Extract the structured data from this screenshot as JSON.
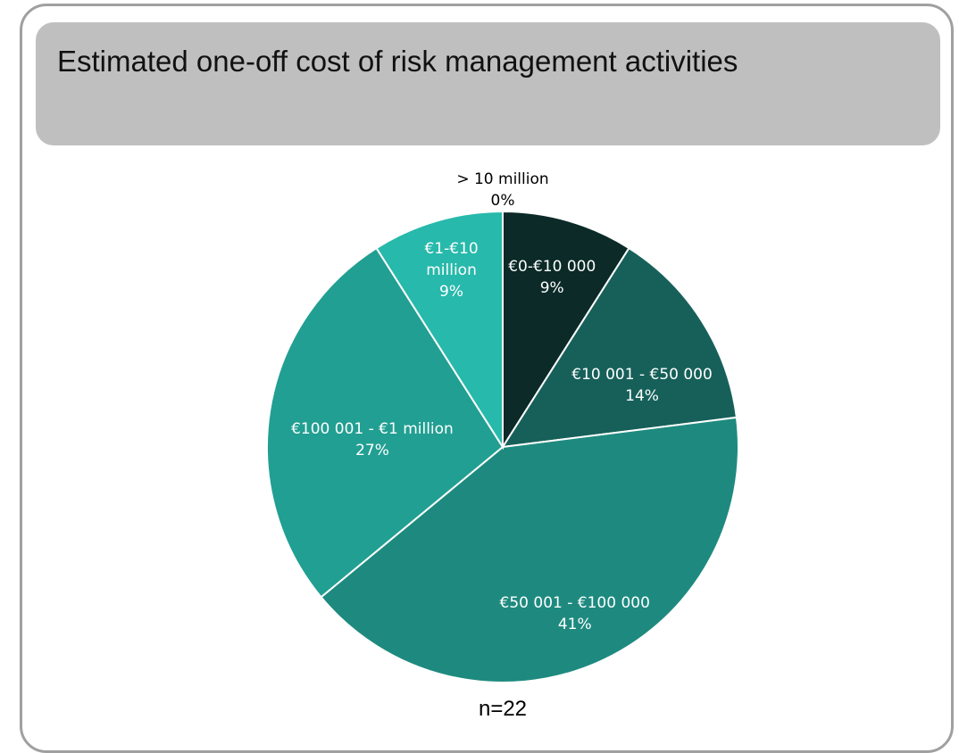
{
  "chart_data": {
    "type": "pie",
    "title": "Estimated one-off cost of risk management activities",
    "categories": [
      "€0-€10 000",
      "€10 001 - €50 000",
      "€50 001 - €100 000",
      "€100 001 - €1 million",
      "€1-€10 million",
      "> 10 million"
    ],
    "values": [
      9,
      14,
      41,
      27,
      9,
      0
    ],
    "value_labels": [
      "9%",
      "14%",
      "41%",
      "27%",
      "9%",
      "0%"
    ],
    "colors": [
      "#0b2a28",
      "#17605a",
      "#1e8a7f",
      "#219f92",
      "#27b9ab",
      "#2fd0c0"
    ],
    "note": "n=22"
  }
}
